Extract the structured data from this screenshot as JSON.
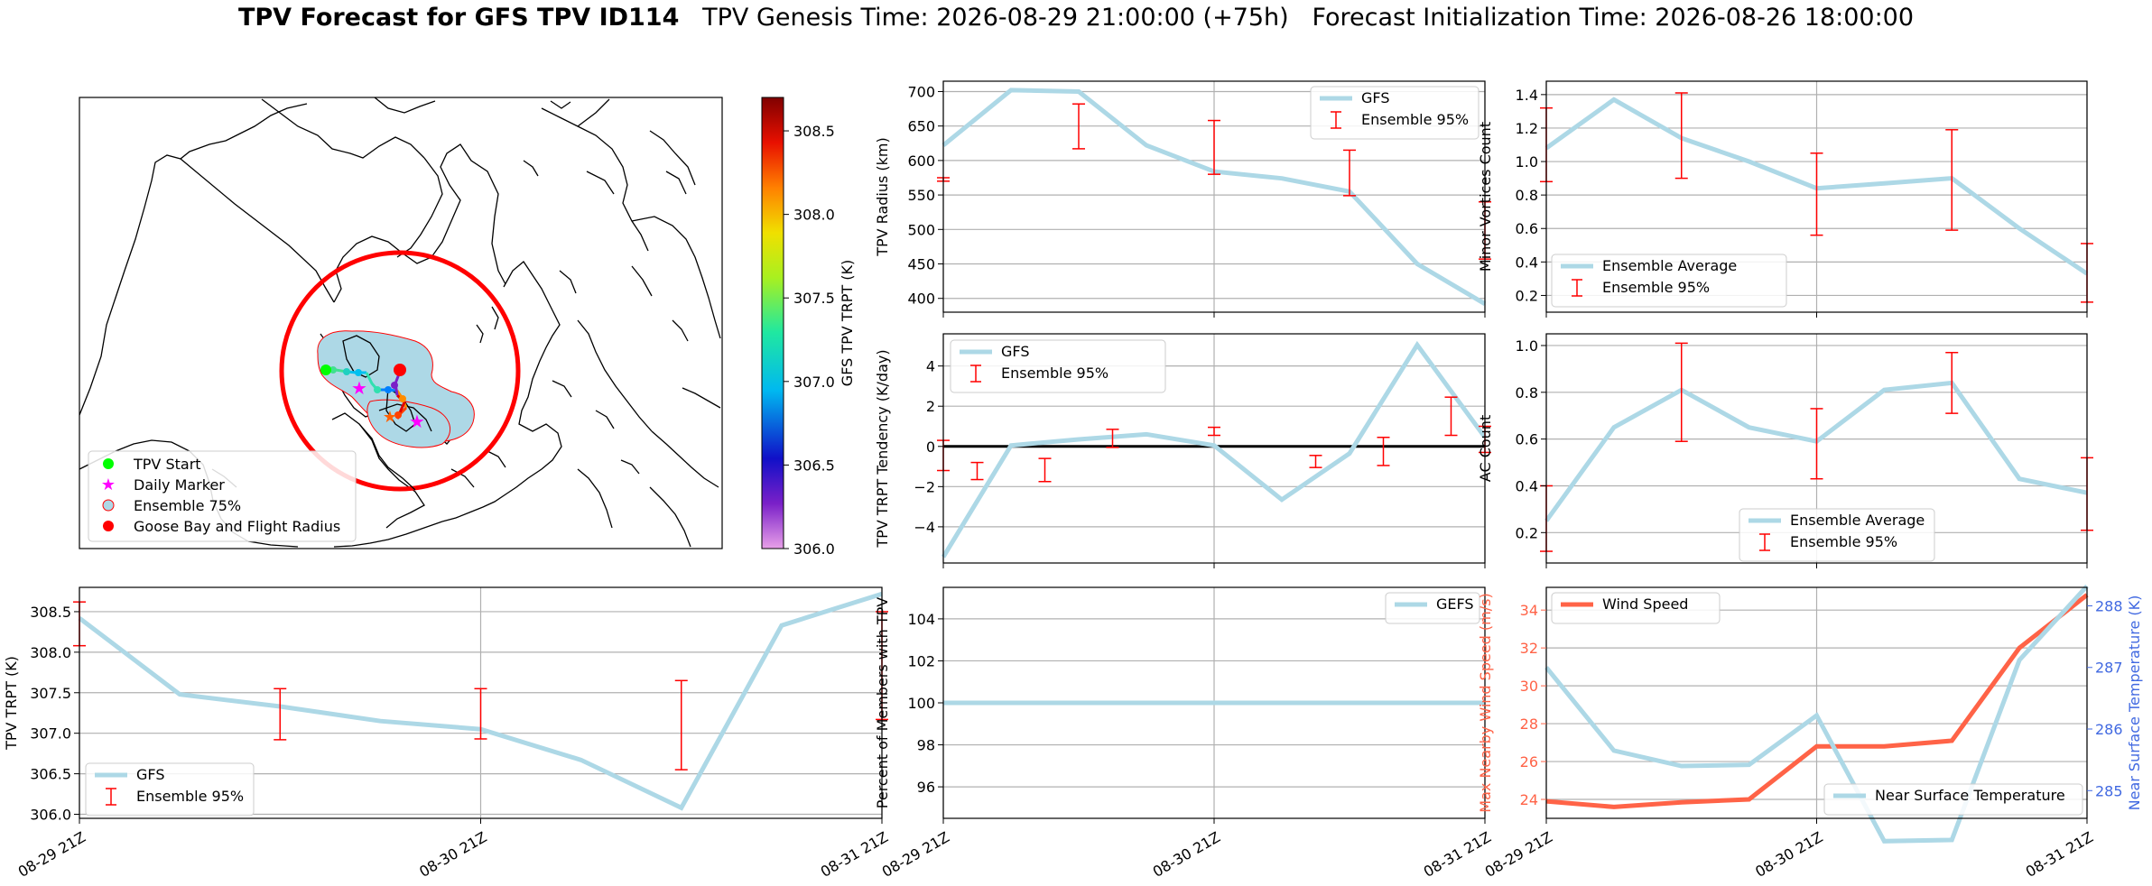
{
  "figure": {
    "title_bold": "TPV Forecast for GFS TPV ID114",
    "title_genesis": "TPV Genesis Time: 2026-08-29 21:00:00 (+75h)",
    "title_init": "Forecast Initialization Time: 2026-08-26 18:00:00"
  },
  "colors": {
    "gfs_line": "#add8e6",
    "error_bar": "#ff0000",
    "wind_line": "#ff6347",
    "temp_axis": "#4169e1",
    "circle": "#ff0000",
    "ensemble_fill": "#add8e6"
  },
  "chart_data": [
    {
      "id": "map",
      "type": "map",
      "legend": [
        "TPV Start",
        "Daily Marker",
        "Ensemble 75%",
        "Goose Bay and Flight Radius"
      ],
      "legend_placement": "lower-left",
      "colorbar": {
        "label": "GFS TPV TRPT (K)",
        "ticks": [
          "306.0",
          "306.5",
          "307.0",
          "307.5",
          "308.0",
          "308.5"
        ],
        "range": [
          306.0,
          308.7
        ],
        "colormap": "rainbow"
      }
    },
    {
      "id": "radius",
      "type": "line",
      "ylabel": "TPV Radius (km)",
      "ylim": [
        380,
        715
      ],
      "yticks": [
        "400",
        "450",
        "500",
        "550",
        "600",
        "650",
        "700"
      ],
      "x": [
        0,
        1,
        2,
        3,
        4,
        5,
        6,
        7,
        8
      ],
      "series": [
        {
          "name": "GFS",
          "values": [
            622,
            702,
            700,
            622,
            584,
            574,
            555,
            450,
            392
          ]
        }
      ],
      "errorbars": {
        "name": "Ensemble 95%",
        "x": [
          0,
          2,
          4,
          6,
          8
        ],
        "low": [
          570,
          617,
          580,
          549,
          457
        ],
        "high": [
          575,
          682,
          658,
          615,
          540
        ]
      },
      "legend_placement": "upper-right",
      "grid": true
    },
    {
      "id": "minor",
      "type": "line",
      "ylabel": "Minor Vortices Count",
      "ylim": [
        0.1,
        1.48
      ],
      "yticks": [
        "0.2",
        "0.4",
        "0.6",
        "0.8",
        "1.0",
        "1.2",
        "1.4"
      ],
      "x": [
        0,
        1,
        2,
        3,
        4,
        5,
        6,
        7,
        8
      ],
      "series": [
        {
          "name": "Ensemble Average",
          "values": [
            1.08,
            1.37,
            1.14,
            1.0,
            0.84,
            0.87,
            0.9,
            0.6,
            0.33
          ]
        }
      ],
      "errorbars": {
        "name": "Ensemble 95%",
        "x": [
          0,
          2,
          4,
          6,
          8
        ],
        "low": [
          0.88,
          0.9,
          0.56,
          0.59,
          0.16
        ],
        "high": [
          1.32,
          1.41,
          1.05,
          1.19,
          0.51
        ]
      },
      "legend_placement": "lower-left",
      "grid": true
    },
    {
      "id": "tendency",
      "type": "line",
      "ylabel": "TPV TRPT Tendency (K/day)",
      "ylim": [
        -5.8,
        5.6
      ],
      "yticks": [
        "−4",
        "−2",
        "0",
        "2",
        "4"
      ],
      "x": [
        0,
        0.5,
        1,
        1.5,
        2,
        2.5,
        3,
        3.5,
        4
      ],
      "series": [
        {
          "name": "GFS",
          "values": [
            -5.5,
            0.05,
            0.35,
            0.6,
            0.05,
            -2.65,
            -0.35,
            5.05,
            0.45
          ]
        }
      ],
      "errorbars": {
        "name": "Ensemble 95%",
        "x": [
          0,
          0.25,
          0.75,
          1.25,
          2,
          2.75,
          3.25,
          3.75,
          4
        ],
        "low": [
          -1.2,
          -1.65,
          -1.75,
          -0.05,
          0.55,
          -1.05,
          -0.95,
          0.55,
          -0.3
        ],
        "high": [
          0.3,
          -0.8,
          -0.6,
          0.85,
          0.95,
          -0.45,
          0.45,
          2.45,
          1.0
        ]
      },
      "reference_line": 0,
      "legend_placement": "upper-left",
      "grid": true
    },
    {
      "id": "ac",
      "type": "line",
      "ylabel": "AC Count",
      "ylim": [
        0.07,
        1.05
      ],
      "yticks": [
        "0.2",
        "0.4",
        "0.6",
        "0.8",
        "1.0"
      ],
      "x": [
        0,
        1,
        2,
        3,
        4,
        5,
        6,
        7,
        8
      ],
      "series": [
        {
          "name": "Ensemble Average",
          "values": [
            0.25,
            0.65,
            0.81,
            0.65,
            0.59,
            0.81,
            0.84,
            0.43,
            0.37
          ]
        }
      ],
      "errorbars": {
        "name": "Ensemble 95%",
        "x": [
          0,
          2,
          4,
          6,
          8
        ],
        "low": [
          0.12,
          0.59,
          0.43,
          0.71,
          0.21
        ],
        "high": [
          0.4,
          1.01,
          0.73,
          0.97,
          0.52
        ]
      },
      "legend_placement": "lower-center",
      "grid": true
    },
    {
      "id": "trpt",
      "type": "line",
      "ylabel": "TPV TRPT (K)",
      "ylim": [
        305.95,
        308.8
      ],
      "yticks": [
        "306.0",
        "306.5",
        "307.0",
        "307.5",
        "308.0",
        "308.5"
      ],
      "xticks": [
        "08-29 21Z",
        "08-30 21Z",
        "08-31 21Z"
      ],
      "x": [
        0,
        1,
        2,
        3,
        4,
        5,
        6,
        7,
        8
      ],
      "series": [
        {
          "name": "GFS",
          "values": [
            308.42,
            307.48,
            307.33,
            307.15,
            307.05,
            306.67,
            306.08,
            308.33,
            308.72
          ]
        }
      ],
      "errorbars": {
        "name": "Ensemble 95%",
        "x": [
          0,
          2,
          4,
          6,
          8
        ],
        "low": [
          308.08,
          306.92,
          306.93,
          306.55,
          307.17
        ],
        "high": [
          308.62,
          307.55,
          307.55,
          307.65,
          308.5
        ]
      },
      "legend_placement": "lower-left",
      "grid": true
    },
    {
      "id": "members",
      "type": "line",
      "ylabel": "Percent of Members with TPV",
      "ylim": [
        94.5,
        105.5
      ],
      "yticks": [
        "96",
        "98",
        "100",
        "102",
        "104"
      ],
      "xticks": [
        "08-29 21Z",
        "08-30 21Z",
        "08-31 21Z"
      ],
      "x": [
        0,
        8
      ],
      "series": [
        {
          "name": "GEFS",
          "values": [
            100,
            100
          ]
        }
      ],
      "legend_placement": "upper-right",
      "grid": true
    },
    {
      "id": "wind",
      "type": "line",
      "ylabel": "Max Nearby Wind Speed (m/s)",
      "ylabel_right": "Near Surface Temperature (K)",
      "ylim": [
        23.0,
        35.2
      ],
      "ylim_right": [
        284.55,
        288.3
      ],
      "yticks": [
        "24",
        "26",
        "28",
        "30",
        "32",
        "34"
      ],
      "yticks_right": [
        "285",
        "286",
        "287",
        "288"
      ],
      "xticks": [
        "08-29 21Z",
        "08-30 21Z",
        "08-31 21Z"
      ],
      "x": [
        0,
        1,
        2,
        3,
        4,
        5,
        6,
        7,
        8
      ],
      "series": [
        {
          "name": "Wind Speed",
          "axis": "left",
          "values": [
            23.9,
            23.6,
            23.85,
            24.0,
            26.8,
            26.8,
            27.1,
            32.0,
            34.8
          ]
        },
        {
          "name": "Near Surface Temperature",
          "axis": "right",
          "values": [
            287.0,
            285.65,
            285.4,
            285.42,
            286.22,
            284.18,
            284.2,
            287.12,
            288.32
          ]
        }
      ],
      "legend_placement": "upper-left / lower-right",
      "grid": true
    }
  ]
}
